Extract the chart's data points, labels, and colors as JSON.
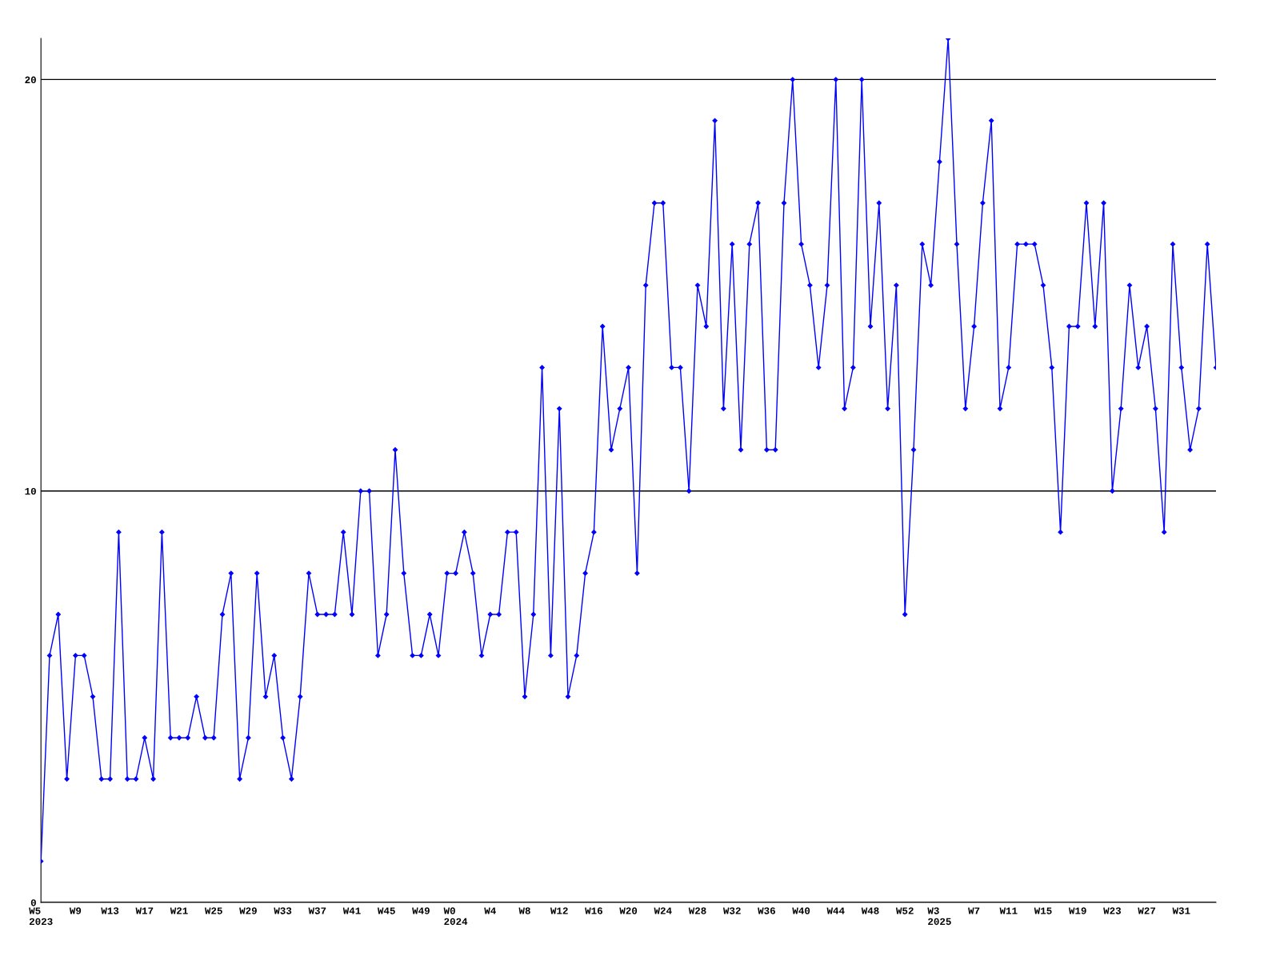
{
  "chart_data": {
    "type": "line",
    "categories": [
      "W5\n2023",
      null,
      null,
      null,
      "W9",
      null,
      null,
      null,
      "W13",
      null,
      null,
      null,
      "W17",
      null,
      null,
      null,
      "W21",
      null,
      null,
      null,
      "W25",
      null,
      null,
      null,
      "W29",
      null,
      null,
      null,
      "W33",
      null,
      null,
      null,
      "W37",
      null,
      null,
      null,
      "W41",
      null,
      null,
      null,
      "W45",
      null,
      null,
      null,
      "W49",
      null,
      null,
      null,
      "W0\n2024",
      null,
      null,
      null,
      "W4",
      null,
      null,
      null,
      "W8",
      null,
      null,
      null,
      "W12",
      null,
      null,
      null,
      "W16",
      null,
      null,
      null,
      "W20",
      null,
      null,
      null,
      "W24",
      null,
      null,
      null,
      "W28",
      null,
      null,
      null,
      "W32",
      null,
      null,
      null,
      "W36",
      null,
      null,
      null,
      "W40",
      null,
      null,
      null,
      "W44",
      null,
      null,
      null,
      "W48",
      null,
      null,
      null,
      "W52",
      null,
      null,
      null,
      "W3\n2025",
      null,
      null,
      null,
      "W7",
      null,
      null,
      null,
      "W11",
      null,
      null,
      null,
      "W15",
      null,
      null,
      null,
      "W19",
      null,
      null,
      null,
      "W23",
      null,
      null,
      null,
      "W27",
      null,
      null,
      null,
      "W31",
      null,
      null,
      null,
      null
    ],
    "series": [
      {
        "color": "#0000ff",
        "values": [
          1,
          6,
          7,
          3,
          6,
          6,
          5,
          3,
          3,
          9,
          3,
          3,
          4,
          3,
          9,
          4,
          4,
          4,
          5,
          4,
          4,
          7,
          8,
          3,
          4,
          8,
          5,
          6,
          4,
          3,
          5,
          8,
          7,
          7,
          7,
          9,
          7,
          10,
          10,
          6,
          7,
          11,
          8,
          6,
          6,
          7,
          6,
          8,
          8,
          9,
          8,
          6,
          7,
          7,
          9,
          9,
          5,
          7,
          13,
          6,
          12,
          5,
          6,
          8,
          9,
          14,
          11,
          12,
          13,
          8,
          15,
          17,
          17,
          13,
          13,
          10,
          15,
          14,
          19,
          12,
          16,
          11,
          16,
          17,
          11,
          11,
          17,
          20,
          16,
          15,
          13,
          15,
          20,
          12,
          13,
          20,
          14,
          17,
          12,
          15,
          7,
          11,
          16,
          15,
          18,
          21,
          16,
          12,
          14,
          17,
          19,
          12,
          13,
          16,
          16,
          16,
          15,
          13,
          9,
          14,
          14,
          17,
          14,
          17,
          10,
          12,
          15,
          13,
          14,
          12,
          9,
          16,
          13,
          11,
          12,
          16,
          13
        ]
      }
    ],
    "ylim": [
      0,
      21
    ],
    "yticks": [
      0,
      10,
      20
    ],
    "grid": "y",
    "marker": "diamond",
    "line_style": "solid",
    "legend": false
  }
}
